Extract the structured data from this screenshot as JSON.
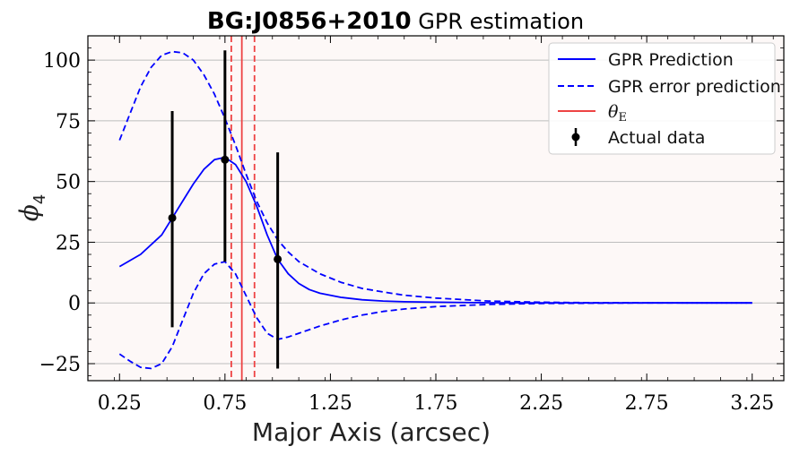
{
  "chart_data": {
    "type": "line",
    "title_bold": "BG:J0856+2010",
    "title_rest": " GPR estimation",
    "xlabel": "Major Axis (arcsec)",
    "ylabel": "ϕ",
    "ylabel_sub": "4",
    "xlim": [
      0.1,
      3.4
    ],
    "ylim": [
      -32,
      110
    ],
    "xticks": [
      0.25,
      0.75,
      1.25,
      1.75,
      2.25,
      2.75,
      3.25
    ],
    "xtick_labels": [
      "0.25",
      "0.75",
      "1.25",
      "1.75",
      "2.25",
      "2.75",
      "3.25"
    ],
    "yticks": [
      -25,
      0,
      25,
      50,
      75,
      100
    ],
    "ytick_labels": [
      "−25",
      "0",
      "25",
      "50",
      "75",
      "100"
    ],
    "grid": "horizontal",
    "legend_position": "top-right",
    "series": [
      {
        "name": "GPR Prediction",
        "style": "solid",
        "color": "#0000ff",
        "x": [
          0.25,
          0.35,
          0.45,
          0.5,
          0.55,
          0.6,
          0.65,
          0.7,
          0.75,
          0.8,
          0.85,
          0.9,
          0.95,
          1.0,
          1.05,
          1.1,
          1.15,
          1.2,
          1.3,
          1.4,
          1.5,
          1.6,
          1.75,
          2.0,
          2.25,
          2.5,
          3.0,
          3.25
        ],
        "y": [
          15,
          20,
          28,
          35,
          42,
          49,
          55,
          59,
          60,
          57,
          50,
          40,
          28,
          18,
          12,
          8,
          5.5,
          4,
          2.3,
          1.3,
          0.8,
          0.5,
          0.3,
          0.1,
          0.05,
          0.02,
          0,
          0
        ]
      },
      {
        "name": "GPR error prediction",
        "style": "dashed",
        "color": "#0000ff",
        "x": [
          0.25,
          0.3,
          0.35,
          0.4,
          0.45,
          0.5,
          0.55,
          0.6,
          0.65,
          0.7,
          0.75,
          0.8,
          0.85,
          0.9,
          0.95,
          1.0,
          1.05,
          1.1,
          1.2,
          1.3,
          1.4,
          1.5,
          1.6,
          1.75,
          2.0,
          2.25,
          2.5,
          2.75,
          3.0,
          3.25
        ],
        "y": [
          67,
          78,
          89,
          97,
          102,
          103.5,
          103,
          100,
          94,
          86,
          76,
          65,
          53,
          42,
          33,
          26,
          21,
          17,
          12,
          8.5,
          6,
          4.5,
          3.2,
          2,
          0.8,
          0.3,
          0.1,
          0.05,
          0,
          0
        ]
      },
      {
        "name": "",
        "style": "dashed",
        "color": "#0000ff",
        "x": [
          0.25,
          0.3,
          0.35,
          0.4,
          0.45,
          0.5,
          0.55,
          0.6,
          0.65,
          0.7,
          0.75,
          0.8,
          0.85,
          0.9,
          0.95,
          1.0,
          1.05,
          1.1,
          1.2,
          1.3,
          1.4,
          1.5,
          1.6,
          1.75,
          2.0,
          2.25,
          2.5,
          2.75,
          3.0,
          3.25
        ],
        "y": [
          -21,
          -24,
          -26.5,
          -27,
          -25,
          -18,
          -7,
          4,
          12,
          16,
          17,
          12,
          3,
          -6,
          -12.5,
          -15,
          -14,
          -12.5,
          -9.5,
          -7,
          -5,
          -3.5,
          -2.5,
          -1.5,
          -0.6,
          -0.2,
          -0.1,
          0,
          0,
          0
        ]
      }
    ],
    "vertical_lines": [
      {
        "x": 0.83,
        "style": "solid",
        "color": "#ee4444",
        "name": "θ",
        "name_sub": "E"
      },
      {
        "x": 0.78,
        "style": "dashed",
        "color": "#ee4444"
      },
      {
        "x": 0.89,
        "style": "dashed",
        "color": "#ee4444"
      }
    ],
    "actual_data": {
      "name": "Actual data",
      "x": [
        0.5,
        0.75,
        1.0
      ],
      "y": [
        35,
        59,
        18
      ],
      "yerr_low": [
        -10,
        17,
        -27
      ],
      "yerr_high": [
        79,
        104,
        62
      ]
    }
  }
}
